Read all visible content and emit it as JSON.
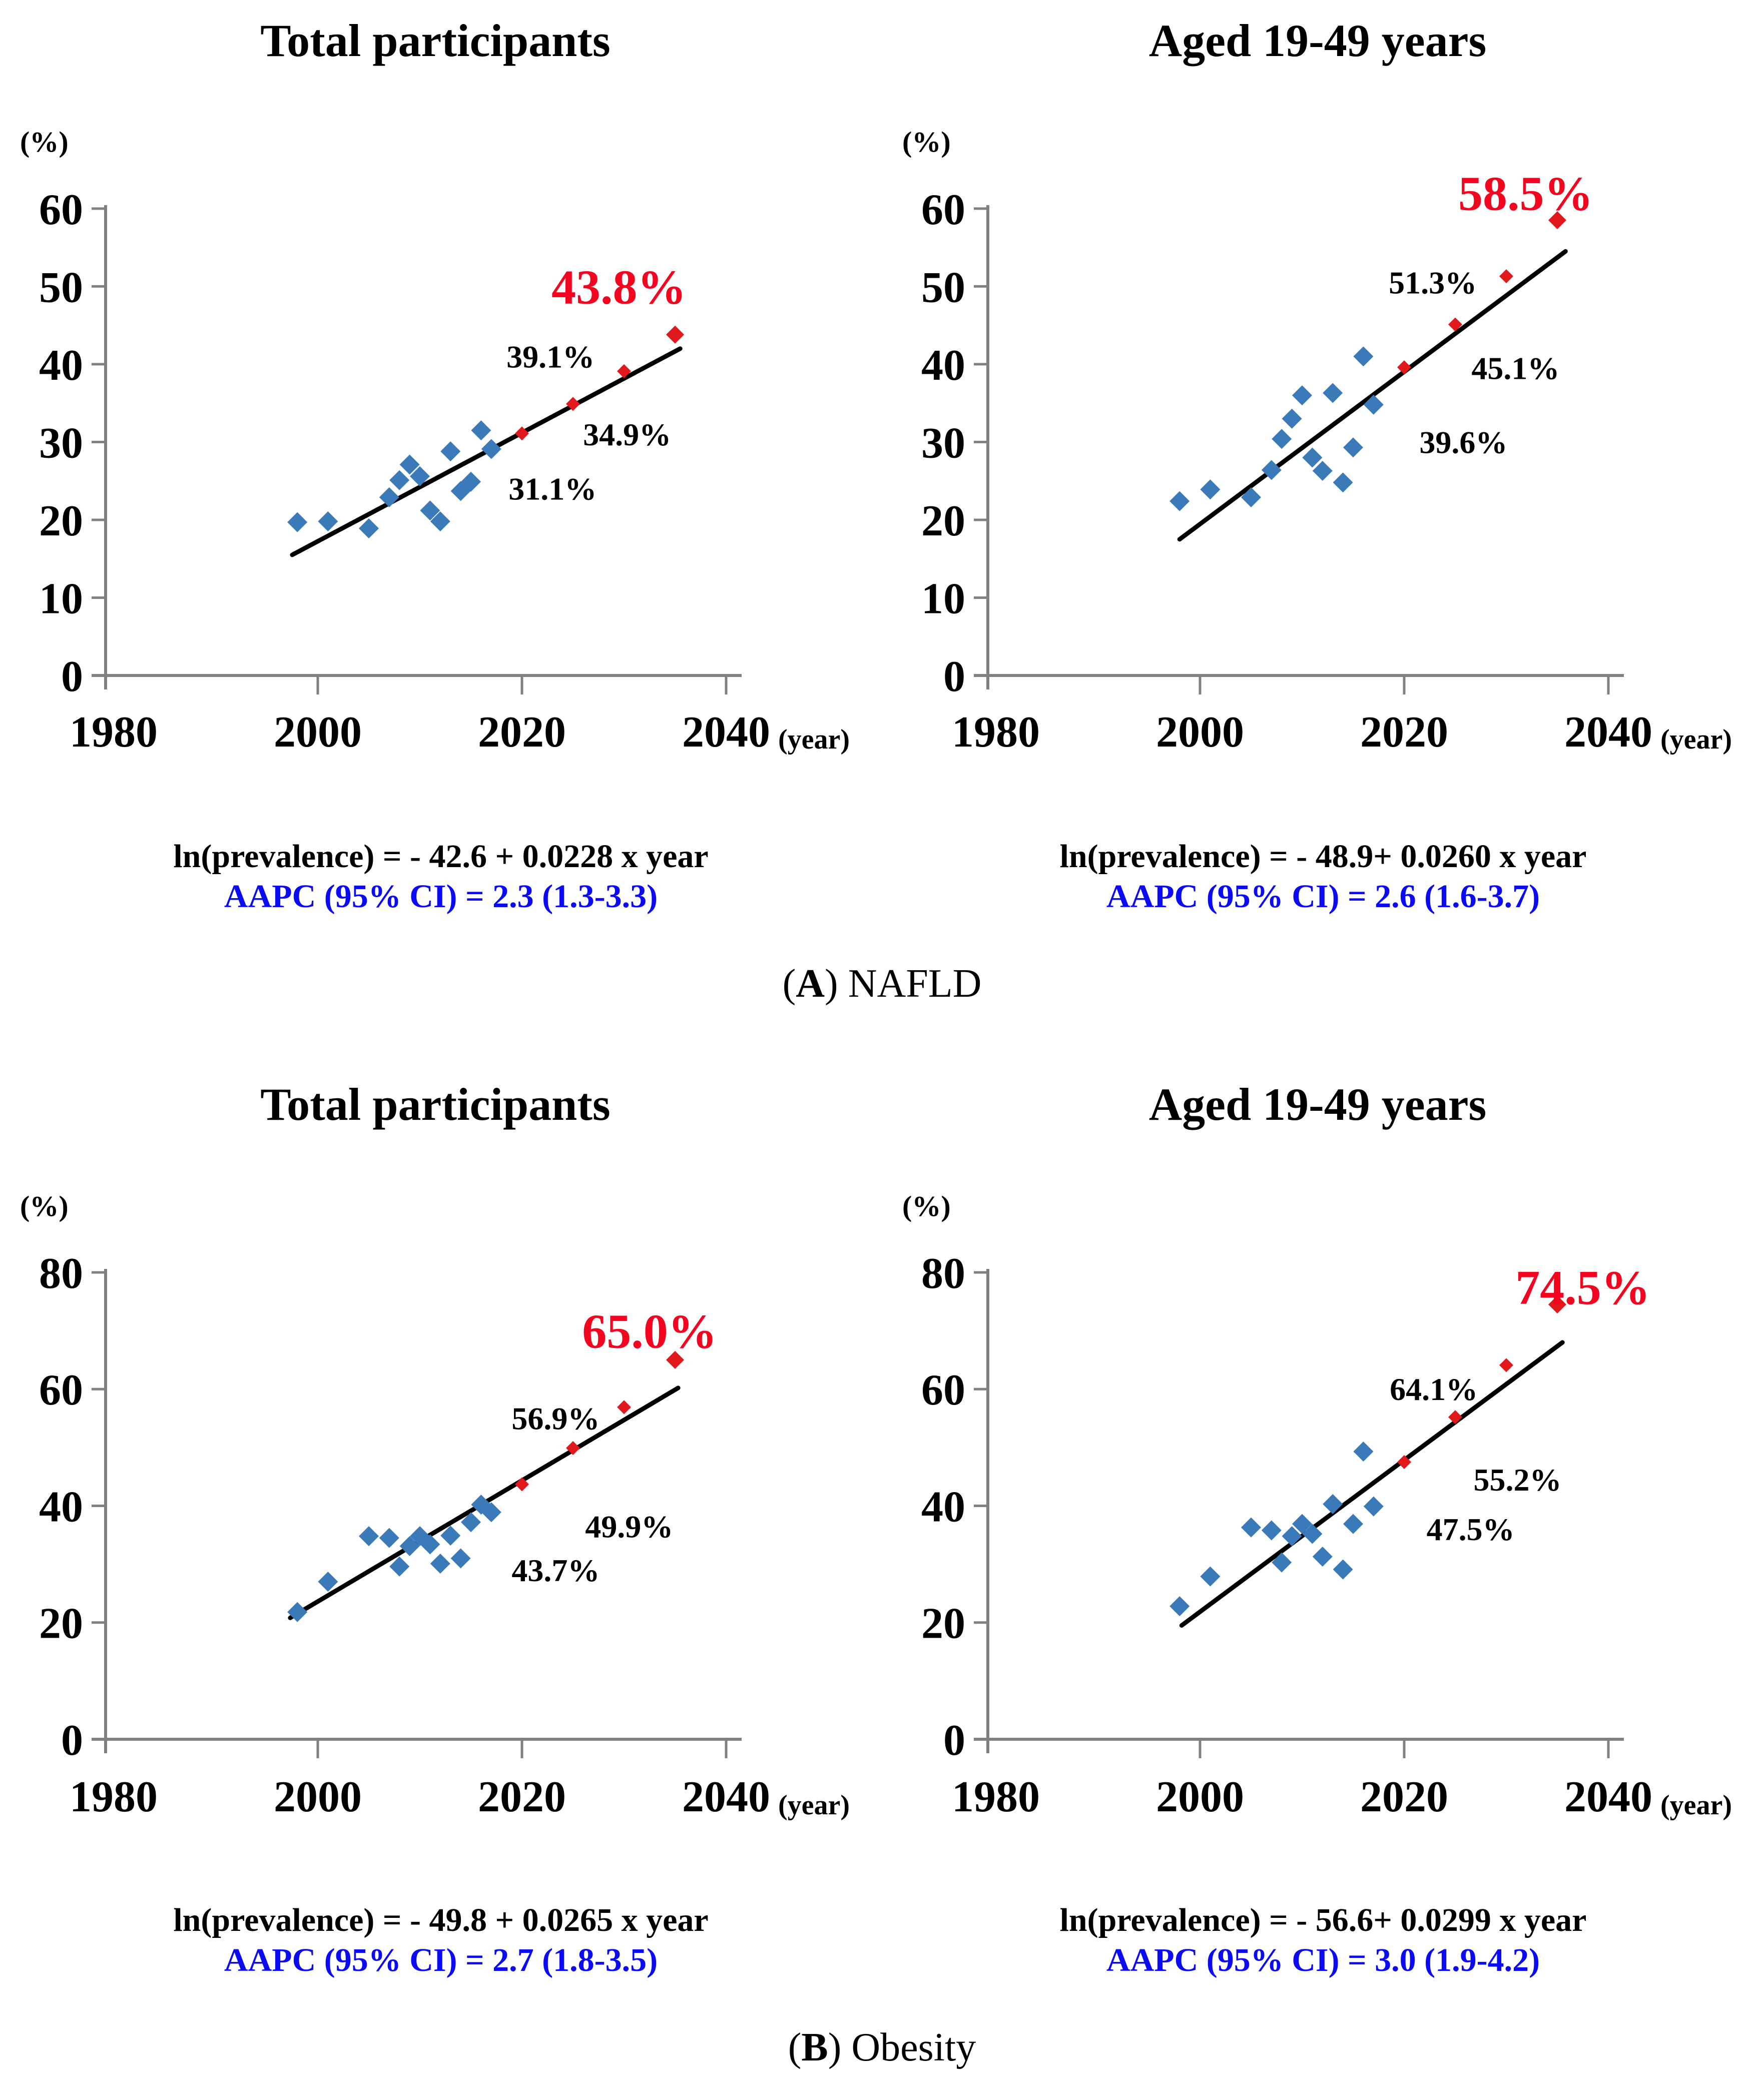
{
  "figure": {
    "colors": {
      "observed_marker": "#3a7ab9",
      "projected_marker": "#e2191c",
      "projection_label": "#f50420",
      "aapc_text": "#0a0af5",
      "axis": "#808080",
      "trend_line": "#000000",
      "text": "#000000"
    },
    "panels": [
      {
        "caption": {
          "open": "(",
          "letter": "A",
          "rest": ") NAFLD"
        }
      },
      {
        "caption": {
          "open": "(",
          "letter": "B",
          "rest": ") Obesity"
        }
      }
    ]
  },
  "chart_data": [
    {
      "type": "scatter",
      "panel": "A",
      "title": "Total participants",
      "ylabel": "(%)",
      "xlabel": "(year)",
      "xlim": [
        1980,
        2043
      ],
      "ylim": [
        0,
        60
      ],
      "x_ticks": [
        1980,
        2000,
        2020,
        2040
      ],
      "y_ticks": [
        0,
        10,
        20,
        30,
        40,
        50,
        60
      ],
      "grid": false,
      "legend": "none",
      "series": [
        {
          "name": "observed",
          "marker": "diamond",
          "points": [
            [
              1998,
              19.7
            ],
            [
              2001,
              19.8
            ],
            [
              2005,
              18.9
            ],
            [
              2007,
              22.9
            ],
            [
              2008,
              25.1
            ],
            [
              2009,
              27.1
            ],
            [
              2010,
              25.6
            ],
            [
              2011,
              21.2
            ],
            [
              2012,
              19.8
            ],
            [
              2013,
              28.8
            ],
            [
              2014,
              23.7
            ],
            [
              2015,
              24.9
            ],
            [
              2016,
              31.5
            ],
            [
              2017,
              29.1
            ]
          ]
        },
        {
          "name": "projected",
          "marker": "diamond",
          "points": [
            [
              2020,
              31.1
            ],
            [
              2025,
              34.9
            ],
            [
              2030,
              39.1
            ],
            [
              2035,
              43.8
            ]
          ]
        }
      ],
      "trendline": {
        "x1": 1997.5,
        "y1": 15.5,
        "x2": 2035.5,
        "y2": 42.0
      },
      "annotations": [
        {
          "text": "31.1%",
          "x": 2023.0,
          "y": 24.0,
          "style": "point"
        },
        {
          "text": "34.9%",
          "x": 2030.3,
          "y": 31.0,
          "style": "point"
        },
        {
          "text": "39.1%",
          "x": 2022.8,
          "y": 41.0,
          "style": "point"
        },
        {
          "text": "43.8%",
          "x": 2029.5,
          "y": 50.0,
          "style": "final"
        }
      ],
      "equation": "ln(prevalence) = - 42.6 + 0.0228 x year",
      "aapc": "AAPC (95% CI) = 2.3 (1.3-3.3)"
    },
    {
      "type": "scatter",
      "panel": "A",
      "title": "Aged 19-49 years",
      "ylabel": "(%)",
      "xlabel": "(year)",
      "xlim": [
        1980,
        2043
      ],
      "ylim": [
        0,
        60
      ],
      "x_ticks": [
        1980,
        2000,
        2020,
        2040
      ],
      "y_ticks": [
        0,
        10,
        20,
        30,
        40,
        50,
        60
      ],
      "grid": false,
      "legend": "none",
      "series": [
        {
          "name": "observed",
          "marker": "diamond",
          "points": [
            [
              1998,
              22.4
            ],
            [
              2001,
              23.9
            ],
            [
              2005,
              22.9
            ],
            [
              2007,
              26.4
            ],
            [
              2008,
              30.4
            ],
            [
              2009,
              33.0
            ],
            [
              2010,
              36.0
            ],
            [
              2011,
              28.0
            ],
            [
              2012,
              26.3
            ],
            [
              2013,
              36.3
            ],
            [
              2014,
              24.8
            ],
            [
              2015,
              29.3
            ],
            [
              2016,
              41.0
            ],
            [
              2017,
              34.8
            ]
          ]
        },
        {
          "name": "projected",
          "marker": "diamond",
          "points": [
            [
              2020,
              39.6
            ],
            [
              2025,
              45.1
            ],
            [
              2030,
              51.3
            ],
            [
              2035,
              58.5
            ]
          ]
        }
      ],
      "trendline": {
        "x1": 1998.0,
        "y1": 17.5,
        "x2": 2035.8,
        "y2": 54.5
      },
      "annotations": [
        {
          "text": "39.6%",
          "x": 2025.8,
          "y": 30.0,
          "style": "point"
        },
        {
          "text": "45.1%",
          "x": 2030.9,
          "y": 39.5,
          "style": "point"
        },
        {
          "text": "51.3%",
          "x": 2022.8,
          "y": 50.5,
          "style": "point"
        },
        {
          "text": "58.5%",
          "x": 2031.9,
          "y": 62.0,
          "style": "final"
        }
      ],
      "equation": "ln(prevalence) = - 48.9+ 0.0260 x year",
      "aapc": "AAPC (95% CI) = 2.6 (1.6-3.7)"
    },
    {
      "type": "scatter",
      "panel": "B",
      "title": "Total participants",
      "ylabel": "(%)",
      "xlabel": "(year)",
      "xlim": [
        1980,
        2043
      ],
      "ylim": [
        0,
        80
      ],
      "x_ticks": [
        1980,
        2000,
        2020,
        2040
      ],
      "y_ticks": [
        0,
        20,
        40,
        60,
        80
      ],
      "grid": false,
      "legend": "none",
      "series": [
        {
          "name": "observed",
          "marker": "diamond",
          "points": [
            [
              1998,
              21.8
            ],
            [
              2001,
              27.0
            ],
            [
              2005,
              34.8
            ],
            [
              2007,
              34.5
            ],
            [
              2008,
              29.6
            ],
            [
              2009,
              33.1
            ],
            [
              2010,
              34.8
            ],
            [
              2011,
              33.4
            ],
            [
              2012,
              30.1
            ],
            [
              2013,
              34.9
            ],
            [
              2014,
              31.0
            ],
            [
              2015,
              37.2
            ],
            [
              2016,
              40.2
            ],
            [
              2017,
              38.9
            ]
          ]
        },
        {
          "name": "projected",
          "marker": "diamond",
          "points": [
            [
              2020,
              43.7
            ],
            [
              2025,
              49.9
            ],
            [
              2030,
              56.9
            ],
            [
              2035,
              65.0
            ]
          ]
        }
      ],
      "trendline": {
        "x1": 1997.3,
        "y1": 20.8,
        "x2": 2035.3,
        "y2": 60.2
      },
      "annotations": [
        {
          "text": "43.7%",
          "x": 2023.3,
          "y": 29.0,
          "style": "point"
        },
        {
          "text": "49.9%",
          "x": 2030.5,
          "y": 36.5,
          "style": "point"
        },
        {
          "text": "56.9%",
          "x": 2023.3,
          "y": 55.0,
          "style": "point"
        },
        {
          "text": "65.0%",
          "x": 2032.5,
          "y": 70.0,
          "style": "final"
        }
      ],
      "equation": "ln(prevalence) = - 49.8 + 0.0265 x year",
      "aapc": "AAPC (95% CI) = 2.7 (1.8-3.5)"
    },
    {
      "type": "scatter",
      "panel": "B",
      "title": "Aged 19-49 years",
      "ylabel": "(%)",
      "xlabel": "(year)",
      "xlim": [
        1980,
        2043
      ],
      "ylim": [
        0,
        80
      ],
      "x_ticks": [
        1980,
        2000,
        2020,
        2040
      ],
      "y_ticks": [
        0,
        20,
        40,
        60,
        80
      ],
      "grid": false,
      "legend": "none",
      "series": [
        {
          "name": "observed",
          "marker": "diamond",
          "points": [
            [
              1998,
              22.8
            ],
            [
              2001,
              27.9
            ],
            [
              2005,
              36.3
            ],
            [
              2007,
              35.8
            ],
            [
              2008,
              30.3
            ],
            [
              2009,
              34.8
            ],
            [
              2010,
              36.9
            ],
            [
              2011,
              35.2
            ],
            [
              2012,
              31.3
            ],
            [
              2013,
              40.3
            ],
            [
              2014,
              29.1
            ],
            [
              2015,
              36.9
            ],
            [
              2016,
              49.3
            ],
            [
              2017,
              39.9
            ]
          ]
        },
        {
          "name": "projected",
          "marker": "diamond",
          "points": [
            [
              2020,
              47.5
            ],
            [
              2025,
              55.2
            ],
            [
              2030,
              64.1
            ],
            [
              2035,
              74.5
            ]
          ]
        }
      ],
      "trendline": {
        "x1": 1998.2,
        "y1": 19.5,
        "x2": 2035.5,
        "y2": 68.0
      },
      "annotations": [
        {
          "text": "47.5%",
          "x": 2026.5,
          "y": 36.0,
          "style": "point"
        },
        {
          "text": "55.2%",
          "x": 2031.1,
          "y": 44.5,
          "style": "point"
        },
        {
          "text": "64.1%",
          "x": 2022.9,
          "y": 60.0,
          "style": "point"
        },
        {
          "text": "74.5%",
          "x": 2037.5,
          "y": 77.5,
          "style": "final"
        }
      ],
      "equation": "ln(prevalence) = - 56.6+ 0.0299 x year",
      "aapc": "AAPC (95% CI) = 3.0 (1.9-4.2)"
    }
  ]
}
